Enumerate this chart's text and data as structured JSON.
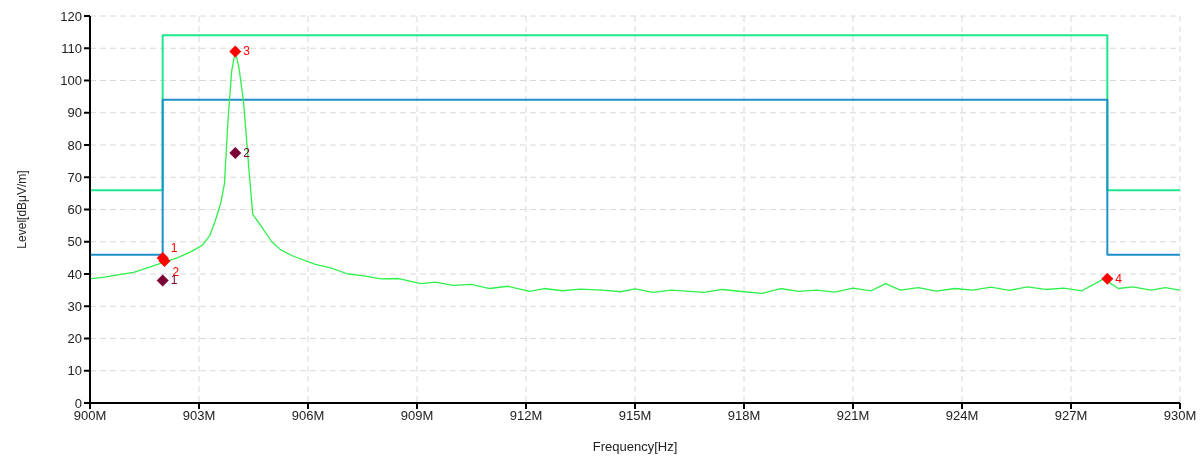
{
  "chart_data": {
    "type": "line",
    "xlabel": "Frequency[Hz]",
    "ylabel": "Level[dBμV/m]",
    "xlim": [
      900,
      930
    ],
    "xticks": [
      {
        "value": 900,
        "label": "900M"
      },
      {
        "value": 903,
        "label": "903M"
      },
      {
        "value": 906,
        "label": "906M"
      },
      {
        "value": 909,
        "label": "909M"
      },
      {
        "value": 912,
        "label": "912M"
      },
      {
        "value": 915,
        "label": "915M"
      },
      {
        "value": 918,
        "label": "918M"
      },
      {
        "value": 921,
        "label": "921M"
      },
      {
        "value": 924,
        "label": "924M"
      },
      {
        "value": 927,
        "label": "927M"
      },
      {
        "value": 930,
        "label": "930M"
      }
    ],
    "ylim": [
      0,
      120
    ],
    "yticks": [
      0,
      10,
      20,
      30,
      40,
      50,
      60,
      70,
      80,
      90,
      100,
      110,
      120
    ],
    "grid": true,
    "annotations": [
      {
        "text": "1",
        "x": 902,
        "y": 45
      },
      {
        "text": "2",
        "x": 902.05,
        "y": 44
      },
      {
        "text": "3",
        "x": 904,
        "y": 109
      },
      {
        "text": "4",
        "x": 928,
        "y": 38.5
      },
      {
        "text": "1",
        "x": 902,
        "y": 38
      },
      {
        "text": "2",
        "x": 904,
        "y": 77.5
      }
    ],
    "series": [
      {
        "type": "step",
        "color": "#1de98b",
        "x": [
          900,
          902,
          928,
          930
        ],
        "values": [
          66,
          114,
          66,
          66
        ]
      },
      {
        "type": "step",
        "color": "#1f8fc9",
        "x": [
          900,
          902,
          928,
          930
        ],
        "values": [
          46,
          94,
          46,
          46
        ]
      },
      {
        "color": "#2ef04a",
        "x": [
          900,
          900.4,
          900.8,
          901.2,
          901.6,
          902,
          902.4,
          902.8,
          903.1,
          903.3,
          903.45,
          903.6,
          903.7,
          903.8,
          903.9,
          904,
          904.1,
          904.23,
          904.37,
          904.48,
          904.7,
          905,
          905.26,
          905.6,
          906.2,
          906.6,
          907.1,
          907.5,
          908,
          908.5,
          909.1,
          909.5,
          910,
          910.5,
          911,
          911.5,
          912.1,
          912.5,
          913,
          913.5,
          914.1,
          914.6,
          915,
          915.5,
          916,
          916.9,
          917.4,
          918,
          918.5,
          919,
          919.5,
          920,
          920.5,
          921,
          921.5,
          921.9,
          922.3,
          922.8,
          923.3,
          923.8,
          924.3,
          924.8,
          925.3,
          925.8,
          926.3,
          926.8,
          927.3,
          927.9,
          928.3,
          928.7,
          929.2,
          929.6,
          930
        ],
        "values": [
          38.5,
          39,
          39.8,
          40.5,
          42,
          43.5,
          45,
          47,
          49,
          52,
          56.6,
          62,
          68,
          88,
          103,
          109,
          104,
          93,
          73,
          58.5,
          55,
          50,
          47.4,
          45.5,
          43,
          42,
          40,
          39.5,
          38.5,
          38.6,
          37,
          37.5,
          36.5,
          36.8,
          35.5,
          36.2,
          34.6,
          35.5,
          34.8,
          35.3,
          35,
          34.5,
          35.4,
          34.3,
          35,
          34.3,
          35.2,
          34.5,
          34,
          35.5,
          34.6,
          35,
          34.4,
          35.6,
          34.8,
          37,
          35,
          35.8,
          34.7,
          35.5,
          35,
          35.9,
          34.9,
          36,
          35.2,
          35.6,
          34.8,
          38.5,
          35.5,
          36,
          35,
          35.8,
          35
        ]
      },
      {
        "type": "scatter",
        "color": "#ff0000",
        "marker": "diamond",
        "x": [
          902,
          902.05,
          904,
          928
        ],
        "values": [
          45,
          44,
          109,
          38.5
        ]
      },
      {
        "type": "scatter",
        "color": "#7a0035",
        "marker": "diamond",
        "x": [
          902,
          904
        ],
        "values": [
          38,
          77.5
        ]
      }
    ]
  }
}
